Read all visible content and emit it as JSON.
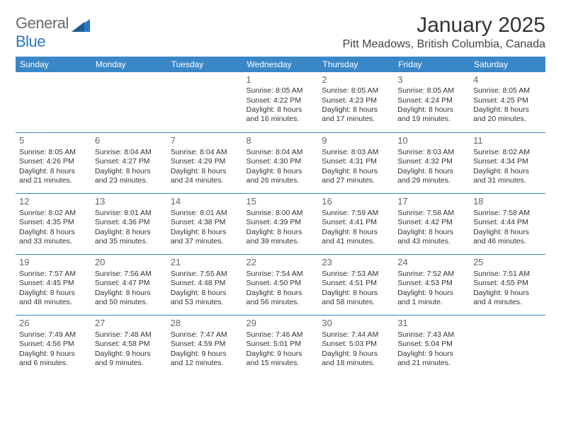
{
  "brand": {
    "general": "General",
    "blue": "Blue"
  },
  "title": "January 2025",
  "location": "Pitt Meadows, British Columbia, Canada",
  "colors": {
    "header_bg": "#3a87c8",
    "header_fg": "#ffffff",
    "rule": "#3a87c8",
    "logo_blue": "#2a77bd",
    "logo_dark": "#1c5c96",
    "text": "#333333",
    "daynum": "#666666",
    "background": "#ffffff"
  },
  "typography": {
    "title_fontsize": 30,
    "location_fontsize": 16,
    "dayheader_fontsize": 12,
    "daynum_fontsize": 13,
    "cell_fontsize": 10.5,
    "font_family": "Arial, Helvetica, sans-serif"
  },
  "day_headers": [
    "Sunday",
    "Monday",
    "Tuesday",
    "Wednesday",
    "Thursday",
    "Friday",
    "Saturday"
  ],
  "weeks": [
    [
      null,
      null,
      null,
      {
        "n": "1",
        "sr": "Sunrise: 8:05 AM",
        "ss": "Sunset: 4:22 PM",
        "dl1": "Daylight: 8 hours",
        "dl2": "and 16 minutes."
      },
      {
        "n": "2",
        "sr": "Sunrise: 8:05 AM",
        "ss": "Sunset: 4:23 PM",
        "dl1": "Daylight: 8 hours",
        "dl2": "and 17 minutes."
      },
      {
        "n": "3",
        "sr": "Sunrise: 8:05 AM",
        "ss": "Sunset: 4:24 PM",
        "dl1": "Daylight: 8 hours",
        "dl2": "and 19 minutes."
      },
      {
        "n": "4",
        "sr": "Sunrise: 8:05 AM",
        "ss": "Sunset: 4:25 PM",
        "dl1": "Daylight: 8 hours",
        "dl2": "and 20 minutes."
      }
    ],
    [
      {
        "n": "5",
        "sr": "Sunrise: 8:05 AM",
        "ss": "Sunset: 4:26 PM",
        "dl1": "Daylight: 8 hours",
        "dl2": "and 21 minutes."
      },
      {
        "n": "6",
        "sr": "Sunrise: 8:04 AM",
        "ss": "Sunset: 4:27 PM",
        "dl1": "Daylight: 8 hours",
        "dl2": "and 23 minutes."
      },
      {
        "n": "7",
        "sr": "Sunrise: 8:04 AM",
        "ss": "Sunset: 4:29 PM",
        "dl1": "Daylight: 8 hours",
        "dl2": "and 24 minutes."
      },
      {
        "n": "8",
        "sr": "Sunrise: 8:04 AM",
        "ss": "Sunset: 4:30 PM",
        "dl1": "Daylight: 8 hours",
        "dl2": "and 26 minutes."
      },
      {
        "n": "9",
        "sr": "Sunrise: 8:03 AM",
        "ss": "Sunset: 4:31 PM",
        "dl1": "Daylight: 8 hours",
        "dl2": "and 27 minutes."
      },
      {
        "n": "10",
        "sr": "Sunrise: 8:03 AM",
        "ss": "Sunset: 4:32 PM",
        "dl1": "Daylight: 8 hours",
        "dl2": "and 29 minutes."
      },
      {
        "n": "11",
        "sr": "Sunrise: 8:02 AM",
        "ss": "Sunset: 4:34 PM",
        "dl1": "Daylight: 8 hours",
        "dl2": "and 31 minutes."
      }
    ],
    [
      {
        "n": "12",
        "sr": "Sunrise: 8:02 AM",
        "ss": "Sunset: 4:35 PM",
        "dl1": "Daylight: 8 hours",
        "dl2": "and 33 minutes."
      },
      {
        "n": "13",
        "sr": "Sunrise: 8:01 AM",
        "ss": "Sunset: 4:36 PM",
        "dl1": "Daylight: 8 hours",
        "dl2": "and 35 minutes."
      },
      {
        "n": "14",
        "sr": "Sunrise: 8:01 AM",
        "ss": "Sunset: 4:38 PM",
        "dl1": "Daylight: 8 hours",
        "dl2": "and 37 minutes."
      },
      {
        "n": "15",
        "sr": "Sunrise: 8:00 AM",
        "ss": "Sunset: 4:39 PM",
        "dl1": "Daylight: 8 hours",
        "dl2": "and 39 minutes."
      },
      {
        "n": "16",
        "sr": "Sunrise: 7:59 AM",
        "ss": "Sunset: 4:41 PM",
        "dl1": "Daylight: 8 hours",
        "dl2": "and 41 minutes."
      },
      {
        "n": "17",
        "sr": "Sunrise: 7:58 AM",
        "ss": "Sunset: 4:42 PM",
        "dl1": "Daylight: 8 hours",
        "dl2": "and 43 minutes."
      },
      {
        "n": "18",
        "sr": "Sunrise: 7:58 AM",
        "ss": "Sunset: 4:44 PM",
        "dl1": "Daylight: 8 hours",
        "dl2": "and 46 minutes."
      }
    ],
    [
      {
        "n": "19",
        "sr": "Sunrise: 7:57 AM",
        "ss": "Sunset: 4:45 PM",
        "dl1": "Daylight: 8 hours",
        "dl2": "and 48 minutes."
      },
      {
        "n": "20",
        "sr": "Sunrise: 7:56 AM",
        "ss": "Sunset: 4:47 PM",
        "dl1": "Daylight: 8 hours",
        "dl2": "and 50 minutes."
      },
      {
        "n": "21",
        "sr": "Sunrise: 7:55 AM",
        "ss": "Sunset: 4:48 PM",
        "dl1": "Daylight: 8 hours",
        "dl2": "and 53 minutes."
      },
      {
        "n": "22",
        "sr": "Sunrise: 7:54 AM",
        "ss": "Sunset: 4:50 PM",
        "dl1": "Daylight: 8 hours",
        "dl2": "and 56 minutes."
      },
      {
        "n": "23",
        "sr": "Sunrise: 7:53 AM",
        "ss": "Sunset: 4:51 PM",
        "dl1": "Daylight: 8 hours",
        "dl2": "and 58 minutes."
      },
      {
        "n": "24",
        "sr": "Sunrise: 7:52 AM",
        "ss": "Sunset: 4:53 PM",
        "dl1": "Daylight: 9 hours",
        "dl2": "and 1 minute."
      },
      {
        "n": "25",
        "sr": "Sunrise: 7:51 AM",
        "ss": "Sunset: 4:55 PM",
        "dl1": "Daylight: 9 hours",
        "dl2": "and 4 minutes."
      }
    ],
    [
      {
        "n": "26",
        "sr": "Sunrise: 7:49 AM",
        "ss": "Sunset: 4:56 PM",
        "dl1": "Daylight: 9 hours",
        "dl2": "and 6 minutes."
      },
      {
        "n": "27",
        "sr": "Sunrise: 7:48 AM",
        "ss": "Sunset: 4:58 PM",
        "dl1": "Daylight: 9 hours",
        "dl2": "and 9 minutes."
      },
      {
        "n": "28",
        "sr": "Sunrise: 7:47 AM",
        "ss": "Sunset: 4:59 PM",
        "dl1": "Daylight: 9 hours",
        "dl2": "and 12 minutes."
      },
      {
        "n": "29",
        "sr": "Sunrise: 7:46 AM",
        "ss": "Sunset: 5:01 PM",
        "dl1": "Daylight: 9 hours",
        "dl2": "and 15 minutes."
      },
      {
        "n": "30",
        "sr": "Sunrise: 7:44 AM",
        "ss": "Sunset: 5:03 PM",
        "dl1": "Daylight: 9 hours",
        "dl2": "and 18 minutes."
      },
      {
        "n": "31",
        "sr": "Sunrise: 7:43 AM",
        "ss": "Sunset: 5:04 PM",
        "dl1": "Daylight: 9 hours",
        "dl2": "and 21 minutes."
      },
      null
    ]
  ]
}
